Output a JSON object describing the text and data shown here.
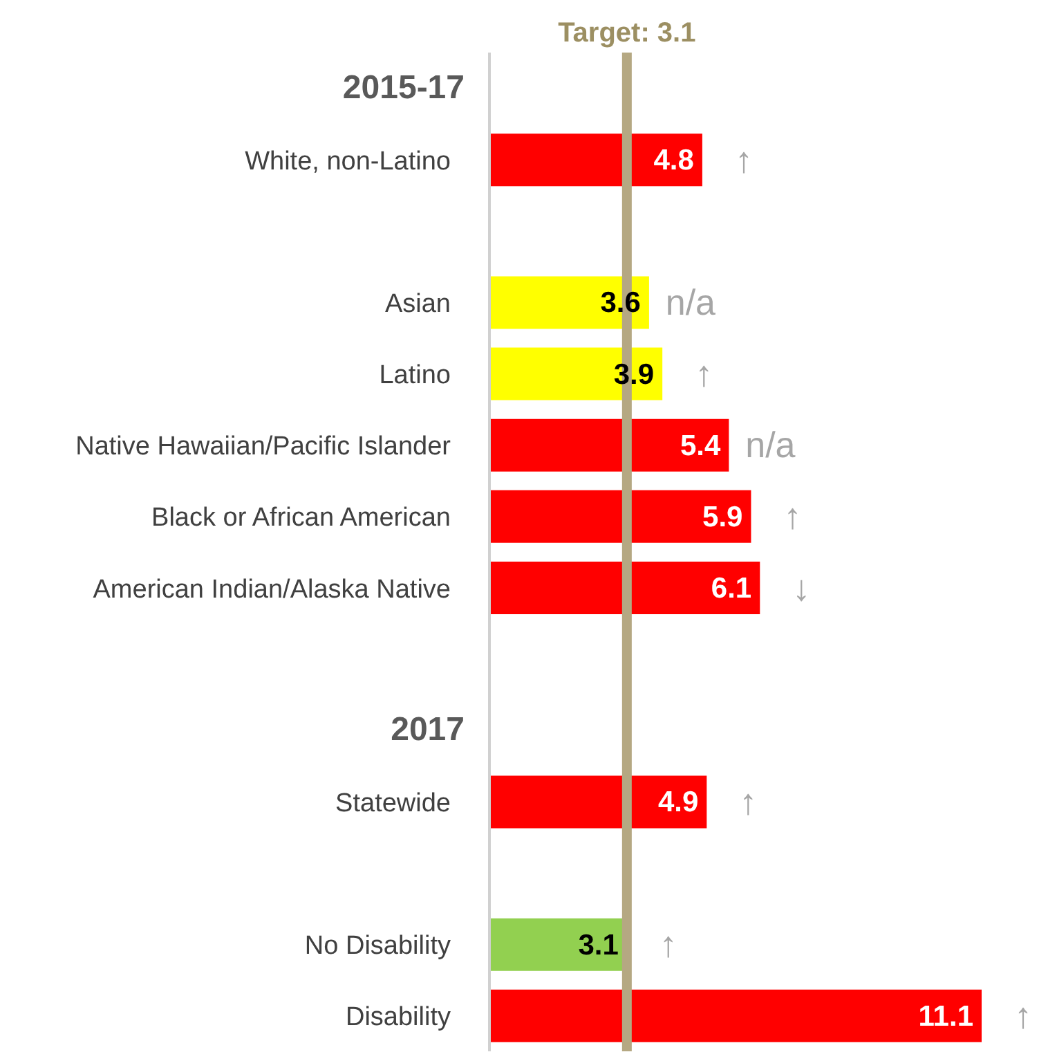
{
  "chart_data": {
    "type": "bar",
    "orientation": "horizontal",
    "categories": [
      "2015-17",
      "White, non-Latino",
      null,
      "Asian",
      "Latino",
      "Native Hawaiian/Pacific Islander",
      "Black or African American",
      "American Indian/Alaska Native",
      null,
      "2017",
      "Statewide",
      null,
      "No Disability",
      "Disability"
    ],
    "values": [
      null,
      4.8,
      null,
      3.6,
      3.9,
      5.4,
      5.9,
      6.1,
      null,
      null,
      4.9,
      null,
      3.1,
      11.1
    ],
    "colors": [
      "#ff0000",
      "#ff0000",
      "#ff0000",
      "#ffff00",
      "#ffff00",
      "#ff0000",
      "#ff0000",
      "#ff0000",
      "#ff0000",
      "#ff0000",
      "#ff0000",
      "#ff0000",
      "#92d050",
      "#ff0000"
    ],
    "data_labels": true,
    "tick_labels": "y",
    "grid": false,
    "legend": false,
    "ref_lines": [
      {
        "axis": "x",
        "value": 3.1,
        "label": "Target: 3.1",
        "color": "#b5a882"
      }
    ],
    "annotations": [
      {
        "text": "↑",
        "x": 4.8,
        "y": "White, non-Latino"
      },
      {
        "text": "n/a",
        "x": 3.6,
        "y": "Asian"
      },
      {
        "text": "↑",
        "x": 3.9,
        "y": "Latino"
      },
      {
        "text": "n/a",
        "x": 5.4,
        "y": "Native Hawaiian/Pacific Islander"
      },
      {
        "text": "↑",
        "x": 5.9,
        "y": "Black or African American"
      },
      {
        "text": "↓",
        "x": 6.1,
        "y": "American Indian/Alaska Native"
      },
      {
        "text": "↑",
        "x": 4.9,
        "y": "Statewide"
      },
      {
        "text": "↑",
        "x": 3.1,
        "y": "No Disability"
      },
      {
        "text": "↑",
        "x": 11.1,
        "y": "Disability"
      }
    ]
  }
}
